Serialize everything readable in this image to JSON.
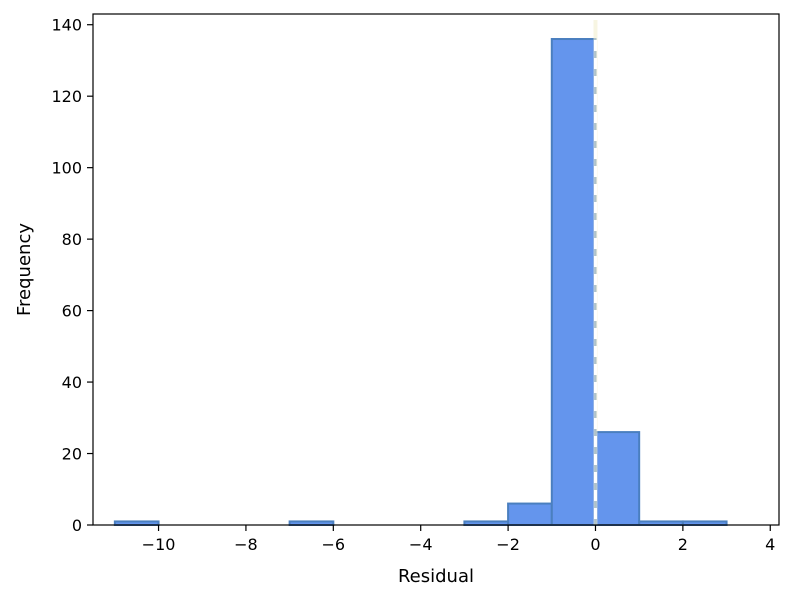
{
  "chart_data": {
    "type": "bar",
    "xlabel": "Residual",
    "ylabel": "Frequency",
    "xlim": [
      -11.5,
      4.2
    ],
    "ylim": [
      0,
      143
    ],
    "xticks": [
      -10,
      -8,
      -6,
      -4,
      -2,
      0,
      2,
      4
    ],
    "xtick_labels": [
      "−10",
      "−8",
      "−6",
      "−4",
      "−2",
      "0",
      "2",
      "4"
    ],
    "yticks": [
      0,
      20,
      40,
      60,
      80,
      100,
      120,
      140
    ],
    "ytick_labels": [
      "0",
      "20",
      "40",
      "60",
      "80",
      "100",
      "120",
      "140"
    ],
    "bins": [
      {
        "x0": -11.0,
        "x1": -10.0,
        "count": 1
      },
      {
        "x0": -10.0,
        "x1": -9.0,
        "count": 0
      },
      {
        "x0": -9.0,
        "x1": -8.0,
        "count": 0
      },
      {
        "x0": -8.0,
        "x1": -7.0,
        "count": 0
      },
      {
        "x0": -7.0,
        "x1": -6.0,
        "count": 1
      },
      {
        "x0": -6.0,
        "x1": -5.0,
        "count": 0
      },
      {
        "x0": -5.0,
        "x1": -4.0,
        "count": 0
      },
      {
        "x0": -4.0,
        "x1": -3.0,
        "count": 0
      },
      {
        "x0": -3.0,
        "x1": -2.0,
        "count": 1
      },
      {
        "x0": -2.0,
        "x1": -1.0,
        "count": 6
      },
      {
        "x0": -1.0,
        "x1": 0.0,
        "count": 136
      },
      {
        "x0": 0.0,
        "x1": 1.0,
        "count": 26
      },
      {
        "x0": 1.0,
        "x1": 2.0,
        "count": 1
      },
      {
        "x0": 2.0,
        "x1": 3.0,
        "count": 1
      }
    ],
    "bin_edges": [
      -11.0,
      -10.0,
      -9.0,
      -8.0,
      -7.0,
      -6.0,
      -5.0,
      -4.0,
      -3.0,
      -2.0,
      -1.0,
      0.0,
      1.0,
      2.0,
      3.0
    ],
    "reference_line": {
      "x": 0,
      "style": "dashed",
      "color": "#ffffff"
    },
    "colors": {
      "bar_fill": "#6495ed",
      "bar_edge": "#4a7fbf",
      "reference_line": "#ffffff"
    },
    "grid": false
  }
}
